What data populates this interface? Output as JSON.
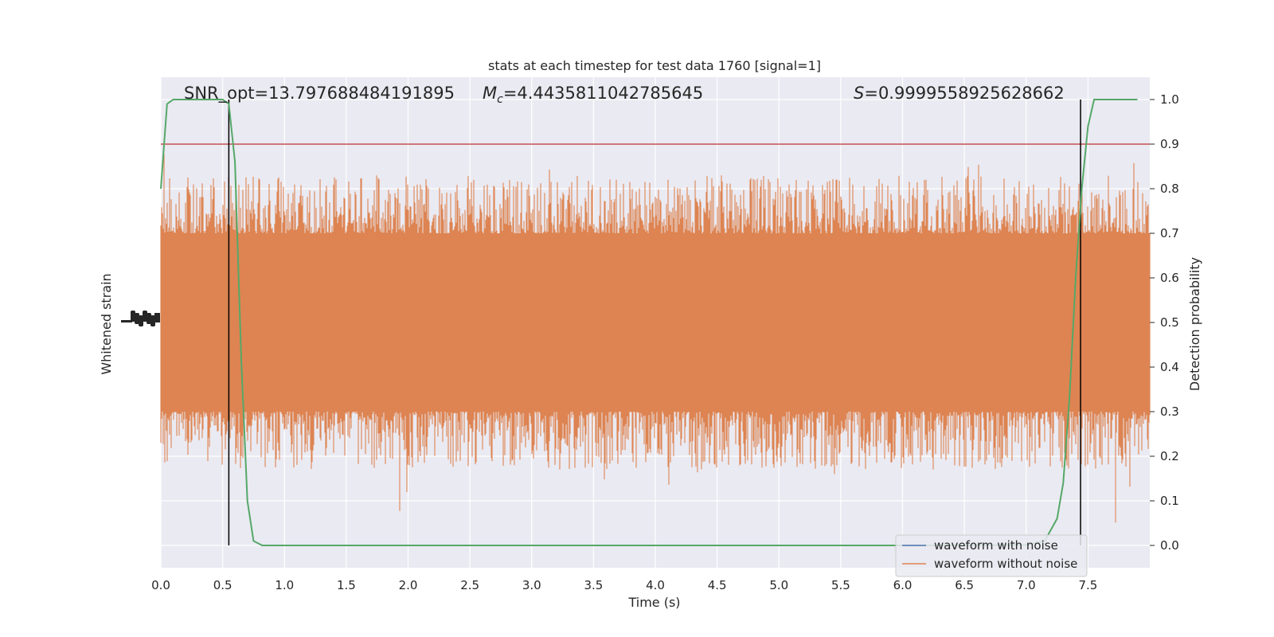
{
  "chart_data": {
    "type": "line",
    "title": "stats at each timestep for test data 1760 [signal=1]",
    "xlabel": "Time (s)",
    "ylabel_left": "Whitened strain",
    "ylabel_right": "Detection probability",
    "xlim": [
      0,
      8
    ],
    "ylim_right": [
      -0.05,
      1.05
    ],
    "x_ticks": [
      "0.0",
      "0.5",
      "1.0",
      "1.5",
      "2.0",
      "2.5",
      "3.0",
      "3.5",
      "4.0",
      "4.5",
      "5.0",
      "5.5",
      "6.0",
      "6.5",
      "7.0",
      "7.5"
    ],
    "y_ticks_right": [
      "0.0",
      "0.1",
      "0.2",
      "0.3",
      "0.4",
      "0.5",
      "0.6",
      "0.7",
      "0.8",
      "0.9",
      "1.0"
    ],
    "grid": true,
    "annotations": {
      "snr": "SNR_opt=13.797688484191895",
      "mc_symbol": "M",
      "mc_sub": "c",
      "mc_value": "=4.4435811042785645",
      "s_symbol": "S",
      "s_value": "=0.9999558925628662"
    },
    "threshold": 0.9,
    "vlines": [
      0.55,
      7.44
    ],
    "series": [
      {
        "name": "waveform with noise",
        "color": "#4c72b0"
      },
      {
        "name": "waveform without noise",
        "color": "#dd8452"
      }
    ],
    "probability": {
      "color": "#55a868",
      "x": [
        0.0,
        0.05,
        0.1,
        0.15,
        0.2,
        0.3,
        0.4,
        0.5,
        0.55,
        0.6,
        0.65,
        0.7,
        0.75,
        0.82,
        0.9,
        1.5,
        2.0,
        3.0,
        4.0,
        5.0,
        6.0,
        7.0,
        7.15,
        7.25,
        7.3,
        7.35,
        7.4,
        7.45,
        7.5,
        7.55,
        7.6,
        7.9
      ],
      "y": [
        0.8,
        0.99,
        1.0,
        1.0,
        1.0,
        1.0,
        1.0,
        1.0,
        0.99,
        0.86,
        0.42,
        0.1,
        0.01,
        0.0,
        0.0,
        0.0,
        0.0,
        0.0,
        0.0,
        0.0,
        0.0,
        0.001,
        0.01,
        0.06,
        0.14,
        0.33,
        0.6,
        0.8,
        0.94,
        1.0,
        1.0,
        1.0
      ]
    }
  }
}
